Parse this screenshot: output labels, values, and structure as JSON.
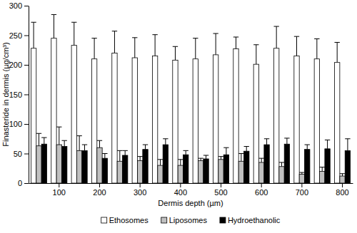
{
  "chart_data": {
    "type": "bar",
    "x_label": "Dermis depth (µm)",
    "y_label": "Finasteride in dermis (µg/cm³)",
    "categories": [
      null,
      "100",
      null,
      "200",
      null,
      "300",
      null,
      "400",
      null,
      "500",
      null,
      "600",
      null,
      "700",
      null,
      "800"
    ],
    "series": [
      {
        "name": "Ethosomes",
        "color": "#ffffff",
        "values": [
          228,
          245,
          233,
          210,
          220,
          212,
          215,
          208,
          210,
          217,
          227,
          201,
          228,
          215,
          210,
          204
        ],
        "errors": [
          44,
          40,
          39,
          35,
          37,
          34,
          36,
          23,
          35,
          36,
          20,
          33,
          37,
          33,
          34,
          34
        ]
      },
      {
        "name": "Liposomes",
        "color": "#c0c0c0",
        "values": [
          63,
          65,
          55,
          60,
          37,
          38,
          30,
          30,
          38,
          40,
          37,
          35,
          28,
          15,
          20,
          12
        ],
        "errors": [
          21,
          30,
          25,
          12,
          18,
          7,
          10,
          10,
          4,
          5,
          13,
          7,
          7,
          3,
          7,
          4
        ]
      },
      {
        "name": "Hydroethanolic",
        "color": "#000000",
        "values": [
          66,
          62,
          55,
          42,
          47,
          57,
          65,
          48,
          41,
          48,
          54,
          65,
          66,
          57,
          58,
          55
        ],
        "errors": [
          11,
          10,
          10,
          8,
          8,
          8,
          10,
          7,
          6,
          12,
          8,
          10,
          10,
          8,
          15,
          20
        ]
      }
    ],
    "ylim": [
      0,
      300
    ],
    "yticks": [
      0,
      50,
      100,
      150,
      200,
      250,
      300
    ],
    "grid": false,
    "legend": "bottom"
  }
}
